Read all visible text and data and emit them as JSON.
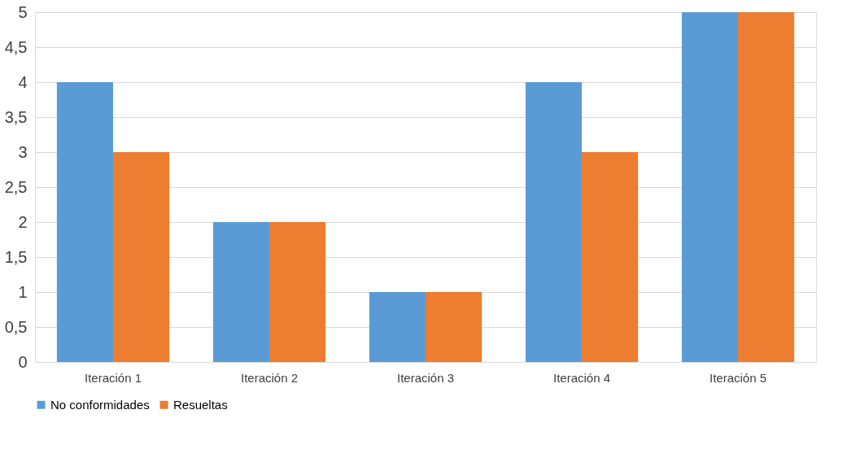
{
  "chart_data": {
    "type": "bar",
    "categories": [
      "Iteración 1",
      "Iteración 2",
      "Iteración 3",
      "Iteración 4",
      "Iteración 5"
    ],
    "series": [
      {
        "name": "No conformidades",
        "color": "#5b9bd5",
        "values": [
          4,
          2,
          1,
          4,
          5
        ]
      },
      {
        "name": "Resueltas",
        "color": "#ed7d31",
        "values": [
          3,
          2,
          1,
          3,
          5
        ]
      }
    ],
    "ylim": [
      0,
      5
    ],
    "yticks": [
      0,
      {
        "value": 0.5,
        "label": "0,5"
      },
      1,
      {
        "value": 1.5,
        "label": "1,5"
      },
      2,
      {
        "value": 2.5,
        "label": "2,5"
      },
      3,
      {
        "value": 3.5,
        "label": "3,5"
      },
      4,
      {
        "value": 4.5,
        "label": "4,5"
      },
      5
    ],
    "grid": "y",
    "legend": "bottom"
  }
}
